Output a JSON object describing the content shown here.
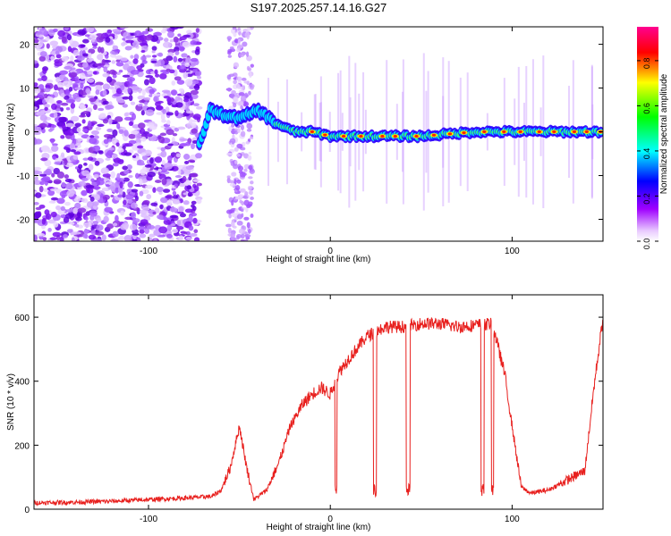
{
  "chart_data": [
    {
      "type": "heatmap",
      "title": "S197.2025.257.14.16.G27",
      "xlabel": "Height of straight line (km)",
      "ylabel": "Frequency (Hz)",
      "xlim": [
        -163,
        150
      ],
      "ylim": [
        -25,
        24
      ],
      "xticks": [
        -100,
        0,
        100
      ],
      "yticks": [
        -20,
        -10,
        0,
        10,
        20
      ],
      "xtick_labels": [
        "-100",
        "0",
        "100"
      ],
      "ytick_labels": [
        "-20",
        "-10",
        "0",
        "10",
        "20"
      ],
      "colorbar": {
        "label": "Normalized spectral amplitude",
        "range": [
          0,
          0.95
        ],
        "ticks": [
          0,
          0.2,
          0.4,
          0.6,
          0.8
        ],
        "tick_labels": [
          "0.0",
          "0.2",
          "0.4",
          "0.6",
          "0.8"
        ],
        "colormap": [
          "#ffffff",
          "#a000ff",
          "#0000ff",
          "#00ffff",
          "#00ff00",
          "#ffff00",
          "#ff0000",
          "#ff0080"
        ]
      },
      "signal_track": [
        {
          "x": -72,
          "y": -3
        },
        {
          "x": -66,
          "y": 5
        },
        {
          "x": -60,
          "y": 4
        },
        {
          "x": -50,
          "y": 3
        },
        {
          "x": -40,
          "y": 5
        },
        {
          "x": -30,
          "y": 2
        },
        {
          "x": -20,
          "y": 0
        },
        {
          "x": -10,
          "y": 0
        },
        {
          "x": 0,
          "y": -1
        },
        {
          "x": 20,
          "y": -1
        },
        {
          "x": 50,
          "y": -1
        },
        {
          "x": 80,
          "y": 0
        },
        {
          "x": 110,
          "y": 0
        },
        {
          "x": 150,
          "y": 0
        }
      ]
    },
    {
      "type": "line",
      "xlabel": "Height of straight line (km)",
      "ylabel": "SNR (10 * v/v)",
      "xlim": [
        -163,
        150
      ],
      "ylim": [
        0,
        670
      ],
      "xticks": [
        -100,
        0,
        100
      ],
      "yticks": [
        0,
        200,
        400,
        600
      ],
      "xtick_labels": [
        "-100",
        "0",
        "100"
      ],
      "ytick_labels": [
        "0",
        "200",
        "400",
        "600"
      ],
      "series": [
        {
          "name": "SNR",
          "color": "#e8201e",
          "x": [
            -163,
            -140,
            -120,
            -100,
            -80,
            -65,
            -60,
            -55,
            -50,
            -46,
            -42,
            -35,
            -28,
            -22,
            -15,
            -10,
            -5,
            0,
            5,
            10,
            20,
            30,
            40,
            50,
            60,
            70,
            80,
            88,
            90,
            96,
            100,
            105,
            110,
            120,
            130,
            140,
            145,
            150
          ],
          "values": [
            20,
            22,
            25,
            30,
            35,
            40,
            60,
            130,
            260,
            130,
            30,
            60,
            150,
            260,
            330,
            360,
            380,
            360,
            430,
            470,
            540,
            570,
            570,
            580,
            580,
            570,
            575,
            580,
            560,
            420,
            260,
            70,
            50,
            60,
            90,
            120,
            380,
            600
          ]
        }
      ]
    }
  ]
}
